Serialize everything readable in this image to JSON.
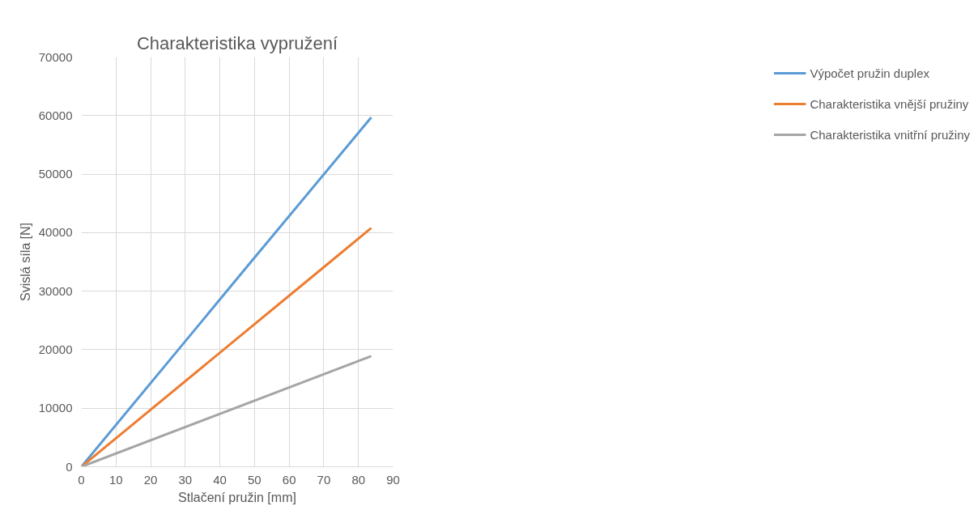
{
  "chart_data": {
    "type": "line",
    "title": "Charakteristika vypružení",
    "xlabel": "Stlačení pružin [mm]",
    "ylabel": "Svislá síla [N]",
    "xlim": [
      0,
      90
    ],
    "xticks": [
      0,
      10,
      20,
      30,
      40,
      50,
      60,
      70,
      80,
      90
    ],
    "ylim": [
      0,
      70000
    ],
    "yticks": [
      0,
      10000,
      20000,
      30000,
      40000,
      50000,
      60000,
      70000
    ],
    "grid": true,
    "legend": "right",
    "line_style": "solid",
    "series": [
      {
        "name": "Výpočet pružin duplex",
        "color": "#5b9bd5",
        "x": [
          0,
          48,
          83.7
        ],
        "values": [
          0,
          34300,
          59700
        ]
      },
      {
        "name": "Charakteristika vnější pružiny",
        "color": "#ed7d31",
        "x": [
          0,
          70,
          83.7
        ],
        "values": [
          0,
          34100,
          40800
        ]
      },
      {
        "name": "Charakteristika vnitřní pružiny",
        "color": "#a5a5a5",
        "x": [
          0,
          83.7
        ],
        "values": [
          0,
          18900
        ]
      }
    ]
  }
}
